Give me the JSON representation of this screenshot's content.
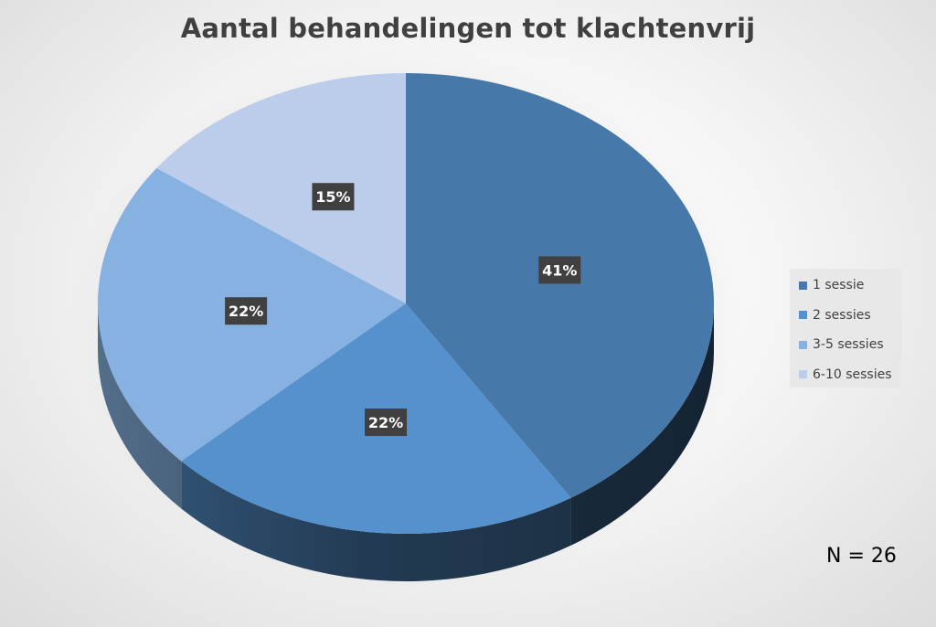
{
  "chart_data": {
    "type": "pie",
    "title": "Aantal behandelingen tot klachtenvrij",
    "categories": [
      "1 sessie",
      "2 sessies",
      "3-5 sessies",
      "6-10 sessies"
    ],
    "values": [
      41,
      22,
      22,
      15
    ],
    "labels": [
      "41%",
      "22%",
      "22%",
      "15%"
    ],
    "colors": [
      "#4679A9",
      "#5591CC",
      "#86B1E0",
      "#BBCDEA"
    ],
    "legend_position": "right",
    "annotation": "N = 26"
  }
}
